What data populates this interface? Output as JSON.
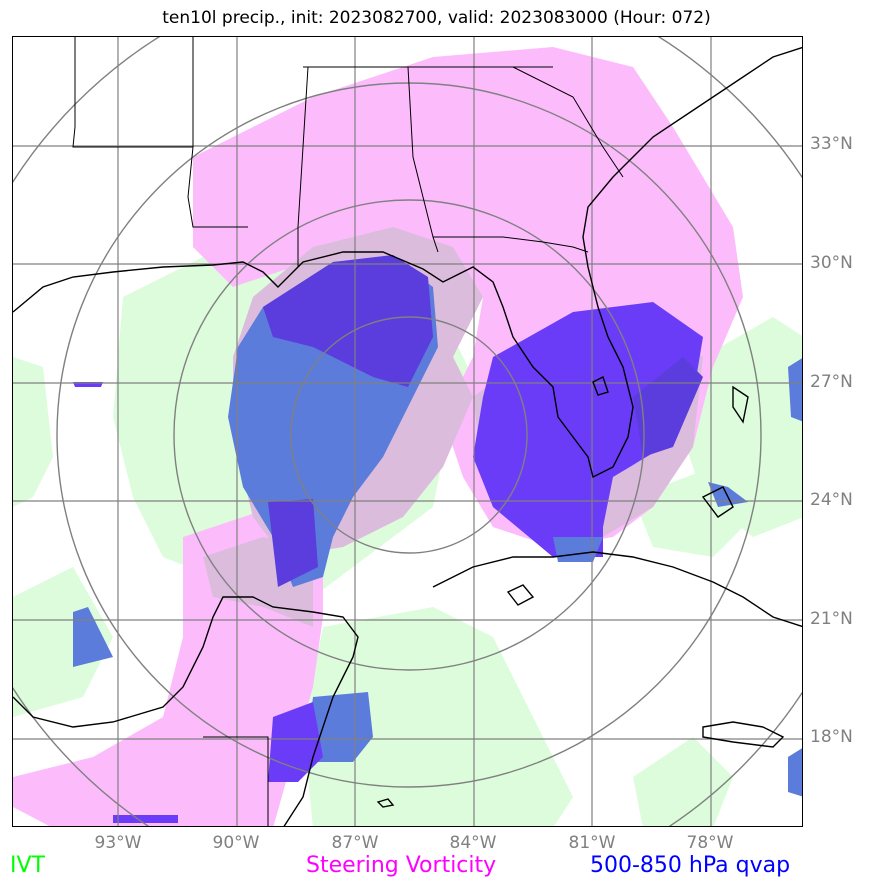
{
  "title": "ten10l precip., init: 2023082700, valid: 2023083000 (Hour: 072)",
  "lat_labels": [
    "33°N",
    "30°N",
    "27°N",
    "24°N",
    "21°N",
    "18°N"
  ],
  "lon_labels": [
    "93°W",
    "90°W",
    "87°W",
    "84°W",
    "81°W",
    "78°W"
  ],
  "legend": {
    "ivt": {
      "label": "IVT",
      "color": "#00ff00"
    },
    "steering_vorticity": {
      "label": "Steering Vorticity",
      "color": "#ff00ff"
    },
    "qvap": {
      "label": "500-850 hPa qvap",
      "color": "#0000ff"
    }
  },
  "colors": {
    "ivt_fill": "#dcfcdc",
    "vorticity_fill": "#fcbcfc",
    "vorticity_overlap": "#dcbcdc",
    "qvap_light": "#5c7cdc",
    "qvap_dark": "#5a3ddc",
    "qvap_strong": "#6a3cf8",
    "grid": "#808080",
    "coast": "#000000"
  }
}
